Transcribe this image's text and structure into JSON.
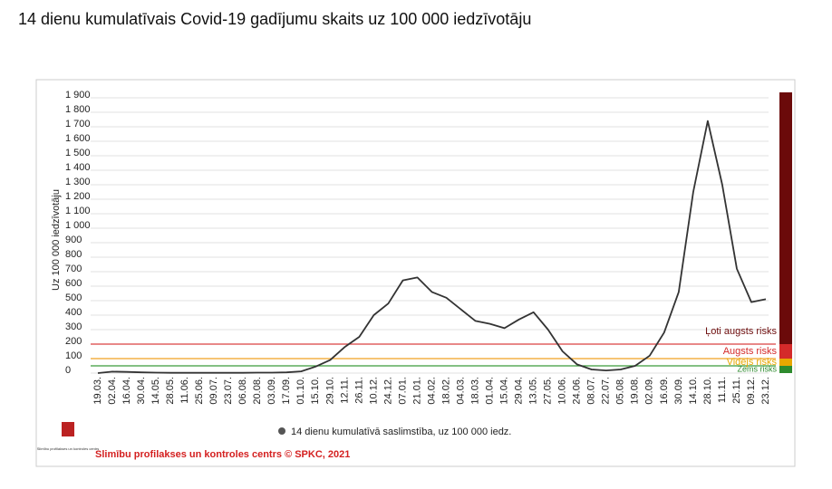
{
  "chart_data": {
    "type": "line",
    "title": "14 dienu kumulatīvais Covid-19 gadījumu skaits uz 100 000 iedzīvotāju",
    "y_label": "Uz 100 000 iedzīvotāju",
    "categories": [
      "19.03.",
      "02.04.",
      "16.04.",
      "30.04.",
      "14.05.",
      "28.05.",
      "11.06.",
      "25.06.",
      "09.07.",
      "23.07.",
      "06.08.",
      "20.08.",
      "03.09.",
      "17.09.",
      "01.10.",
      "15.10.",
      "29.10.",
      "12.11.",
      "26.11.",
      "10.12.",
      "24.12.",
      "07.01.",
      "21.01.",
      "04.02.",
      "18.02.",
      "04.03.",
      "18.03.",
      "01.04.",
      "15.04.",
      "29.04.",
      "13.05.",
      "27.05.",
      "10.06.",
      "24.06.",
      "08.07.",
      "22.07.",
      "05.08.",
      "19.08.",
      "02.09.",
      "16.09.",
      "30.09.",
      "14.10.",
      "28.10.",
      "11.11.",
      "25.11.",
      "09.12.",
      "23.12."
    ],
    "series": [
      {
        "name": "14 dienu kumulatīvā saslimstība, uz 100 000 iedz.",
        "color": "#333333",
        "values": [
          0,
          10,
          8,
          5,
          3,
          2,
          2,
          2,
          2,
          2,
          2,
          3,
          3,
          5,
          12,
          45,
          90,
          180,
          250,
          400,
          480,
          640,
          660,
          560,
          520,
          440,
          360,
          340,
          310,
          370,
          420,
          300,
          150,
          60,
          25,
          18,
          25,
          50,
          120,
          280,
          560,
          1250,
          1740,
          1300,
          720,
          490,
          510
        ]
      }
    ],
    "ylim": [
      0,
      1900
    ],
    "yticks": [
      0,
      100,
      200,
      300,
      400,
      500,
      600,
      700,
      800,
      900,
      {
        "value": 1000,
        "label": "1 000"
      },
      {
        "value": 1100,
        "label": "1 100"
      },
      {
        "value": 1200,
        "label": "1 200"
      },
      {
        "value": 1300,
        "label": "1 300"
      },
      {
        "value": 1400,
        "label": "1 400"
      },
      {
        "value": 1500,
        "label": "1 500"
      },
      {
        "value": 1600,
        "label": "1 600"
      },
      {
        "value": 1700,
        "label": "1 700"
      },
      {
        "value": 1800,
        "label": "1 800"
      },
      {
        "value": 1900,
        "label": "1 900"
      }
    ],
    "grid": true,
    "risk_levels": [
      {
        "label": "Ļoti augsts risks",
        "from": 200,
        "to": 1900,
        "color": "#6b0a0a",
        "line_color": "#d94040"
      },
      {
        "label": "Augsts risks",
        "from": 100,
        "to": 200,
        "color": "#d42a2a",
        "line_color": "#f0a020"
      },
      {
        "label": "Vidējs risks",
        "from": 50,
        "to": 100,
        "color": "#e8a800",
        "line_color": "#3a9a3a"
      },
      {
        "label": "Zems risks",
        "from": 0,
        "to": 50,
        "color": "#2e8b2e",
        "line_color": "#3a9a3a"
      }
    ],
    "logo_text": "Slimību profilakses un kontroles centrs",
    "footer": "Slimību profilakses un kontroles centrs © SPKC, 2021"
  }
}
